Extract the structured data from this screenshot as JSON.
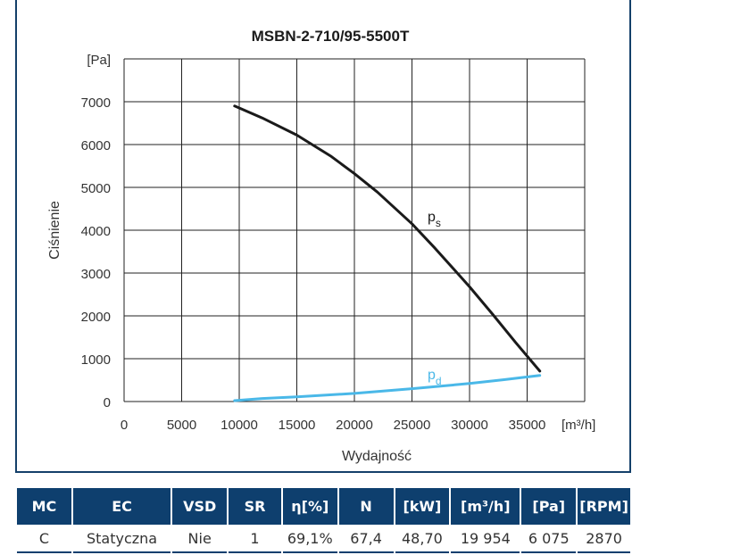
{
  "chart_data": {
    "type": "line",
    "title": "MSBN-2-710/95-5500T",
    "xlabel": "Wydajność",
    "ylabel": "Ciśnienie",
    "y_unit": "[Pa]",
    "x_unit": "[m³/h]",
    "xlim": [
      0,
      40000
    ],
    "ylim": [
      0,
      8000
    ],
    "x_ticks": [
      0,
      5000,
      10000,
      15000,
      20000,
      25000,
      30000,
      35000
    ],
    "y_ticks": [
      0,
      1000,
      2000,
      3000,
      4000,
      5000,
      6000,
      7000
    ],
    "grid": true,
    "series": [
      {
        "name": "p",
        "subscript": "s",
        "color": "#1a1a1a",
        "x": [
          9600,
          12000,
          15000,
          18000,
          20000,
          22000,
          25000,
          27000,
          30000,
          32000,
          34000,
          36100
        ],
        "y": [
          6900,
          6620,
          6220,
          5720,
          5320,
          4890,
          4150,
          3580,
          2680,
          2040,
          1380,
          710
        ]
      },
      {
        "name": "p",
        "subscript": "d",
        "color": "#4ab8e8",
        "x": [
          9600,
          12000,
          15000,
          20000,
          25000,
          30000,
          33000,
          36100
        ],
        "y": [
          20,
          70,
          110,
          190,
          300,
          420,
          510,
          610
        ]
      }
    ]
  },
  "table": {
    "headers": [
      "MC",
      "EC",
      "VSD",
      "SR",
      "η[%]",
      "N",
      "[kW]",
      "[m³/h]",
      "[Pa]",
      "[RPM]"
    ],
    "row": [
      "C",
      "Statyczna",
      "Nie",
      "1",
      "69,1%",
      "67,4",
      "48,70",
      "19 954",
      "6 075",
      "2870"
    ]
  }
}
